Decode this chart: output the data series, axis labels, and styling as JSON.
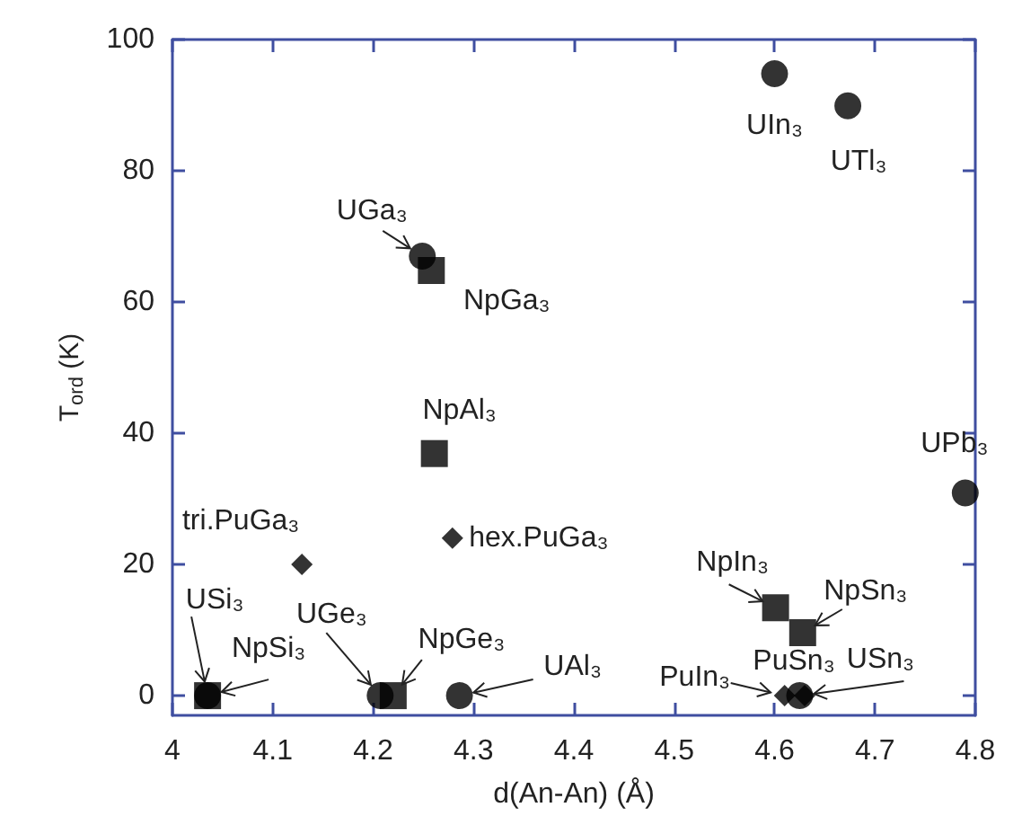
{
  "chart_data": {
    "type": "scatter",
    "xlabel": "d(An-An) (Å)",
    "ylabel": "T$_{ord}$ (K)",
    "xlim": [
      4,
      4.8
    ],
    "xticks": [
      4,
      4.1,
      4.2,
      4.3,
      4.4,
      4.5,
      4.6,
      4.7,
      4.8
    ],
    "ylim": [
      -3,
      100
    ],
    "yticks": [
      0,
      20,
      40,
      60,
      80,
      100
    ],
    "grid": false,
    "series": [
      {
        "color": "#000000",
        "marker": "circle",
        "x": [
          4.6,
          4.673,
          4.249,
          4.79,
          4.035,
          4.207,
          4.286,
          4.625
        ],
        "values": [
          94.8,
          89.9,
          67,
          30.9,
          0,
          0,
          0,
          0
        ]
      },
      {
        "color": "#000000",
        "marker": "square",
        "x": [
          4.258,
          4.261,
          4.601,
          4.628,
          4.035,
          4.22
        ],
        "values": [
          64.8,
          36.9,
          13.4,
          9.6,
          0,
          0
        ]
      },
      {
        "color": "#000000",
        "marker": "diamond",
        "x": [
          4.129,
          4.279,
          4.61,
          4.63
        ],
        "values": [
          20,
          24,
          0,
          0
        ]
      }
    ],
    "annotations": [
      {
        "text": "UIn₃",
        "x": 4.6,
        "y": 94.8
      },
      {
        "text": "UTl₃",
        "x": 4.673,
        "y": 89.9
      },
      {
        "text": "UGa₃",
        "x": 4.249,
        "y": 67
      },
      {
        "text": "NpGa₃",
        "x": 4.258,
        "y": 64.8
      },
      {
        "text": "NpAl₃",
        "x": 4.261,
        "y": 36.9
      },
      {
        "text": "UPb₃",
        "x": 4.79,
        "y": 30.9
      },
      {
        "text": "tri.PuGa₃",
        "x": 4.129,
        "y": 20
      },
      {
        "text": "hex.PuGa₃",
        "x": 4.279,
        "y": 24
      },
      {
        "text": "NpIn₃",
        "x": 4.601,
        "y": 13.4
      },
      {
        "text": "NpSn₃",
        "x": 4.628,
        "y": 9.6
      },
      {
        "text": "USi₃",
        "x": 4.035,
        "y": 0
      },
      {
        "text": "NpSi₃",
        "x": 4.035,
        "y": 0
      },
      {
        "text": "UGe₃",
        "x": 4.207,
        "y": 0
      },
      {
        "text": "NpGe₃",
        "x": 4.22,
        "y": 0
      },
      {
        "text": "UAl₃",
        "x": 4.286,
        "y": 0
      },
      {
        "text": "PuIn₃",
        "x": 4.61,
        "y": 0
      },
      {
        "text": "PuSn₃",
        "x": 4.63,
        "y": 0
      },
      {
        "text": "USn₃",
        "x": 4.625,
        "y": 0
      }
    ]
  }
}
